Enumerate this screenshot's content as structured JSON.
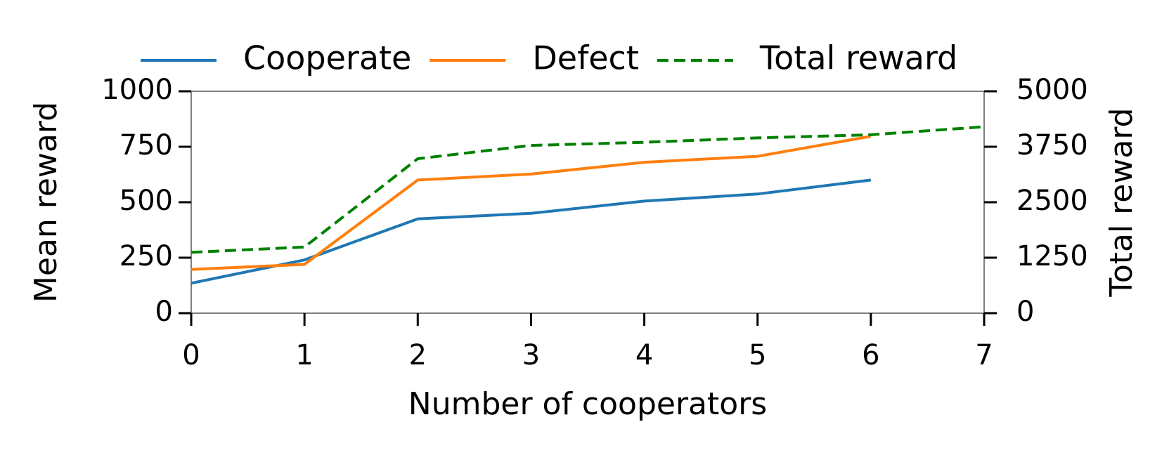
{
  "chart_data": {
    "type": "line",
    "x_label": "Number of cooperators",
    "y_label": "Mean reward",
    "y2_label": "Total reward",
    "x": [
      0,
      1,
      2,
      3,
      4,
      5,
      6,
      7
    ],
    "xlim": [
      0,
      7
    ],
    "xticks": [
      0,
      1,
      2,
      3,
      4,
      5,
      6,
      7
    ],
    "ylim": [
      0,
      1000
    ],
    "yticks": [
      0,
      250,
      500,
      750,
      1000
    ],
    "y2lim": [
      0,
      5000
    ],
    "y2ticks": [
      0,
      1250,
      2500,
      3750,
      5000
    ],
    "legend": "top",
    "series": [
      {
        "name": "Cooperate",
        "color": "#1f77b4",
        "linestyle": "solid",
        "values": [
          135,
          240,
          425,
          450,
          505,
          537,
          600,
          null
        ]
      },
      {
        "name": "Defect",
        "color": "#ff7f0e",
        "linestyle": "solid",
        "values": [
          197,
          220,
          600,
          627,
          680,
          707,
          797,
          null
        ]
      },
      {
        "name": "Total reward",
        "color": "#008000",
        "linestyle": "dashed",
        "axis": "y2",
        "values": [
          1370,
          1490,
          3480,
          3780,
          3850,
          3950,
          4020,
          4200
        ]
      }
    ]
  }
}
